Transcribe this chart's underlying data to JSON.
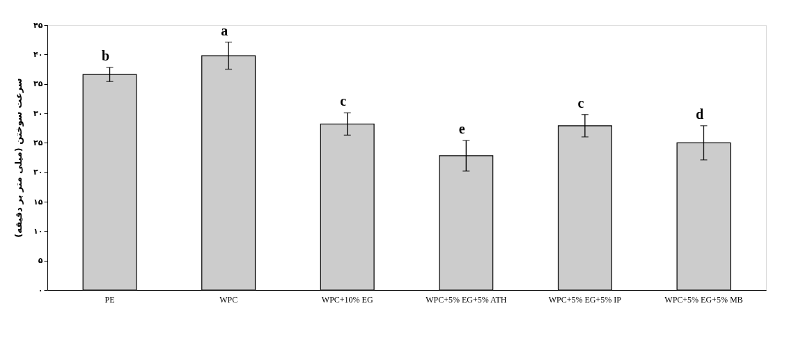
{
  "chart_data": {
    "type": "bar",
    "ylabel": "سرعت سوختن (میلی متر بر دقیقه)",
    "categories": [
      "PE",
      "WPC",
      "WPC+10% EG",
      "WPC+5% EG+5% ATH",
      "WPC+5% EG+5% IP",
      "WPC+5% EG+5% MB"
    ],
    "values": [
      36.6,
      39.8,
      28.2,
      22.8,
      27.9,
      25.0
    ],
    "errors": [
      1.2,
      2.3,
      1.9,
      2.6,
      1.9,
      2.9
    ],
    "color": "#cccccc",
    "ylim": [
      0,
      45
    ],
    "yticks": [
      {
        "value": 0,
        "label": "۰"
      },
      {
        "value": 5,
        "label": "۵"
      },
      {
        "value": 10,
        "label": "۱۰"
      },
      {
        "value": 15,
        "label": "۱۵"
      },
      {
        "value": 20,
        "label": "۲۰"
      },
      {
        "value": 25,
        "label": "۲۵"
      },
      {
        "value": 30,
        "label": "۳۰"
      },
      {
        "value": 35,
        "label": "۳۵"
      },
      {
        "value": 40,
        "label": "۴۰"
      },
      {
        "value": 45,
        "label": "۴۵"
      }
    ],
    "annotations": [
      {
        "text": "b",
        "x": "PE",
        "y": 37.8
      },
      {
        "text": "a",
        "x": "WPC",
        "y": 42.1
      },
      {
        "text": "c",
        "x": "WPC+10% EG",
        "y": 30.1
      },
      {
        "text": "e",
        "x": "WPC+5% EG+5% ATH",
        "y": 25.4
      },
      {
        "text": "c",
        "x": "WPC+5% EG+5% IP",
        "y": 29.8
      },
      {
        "text": "d",
        "x": "WPC+5% EG+5% MB",
        "y": 27.9
      }
    ],
    "grid": false
  }
}
